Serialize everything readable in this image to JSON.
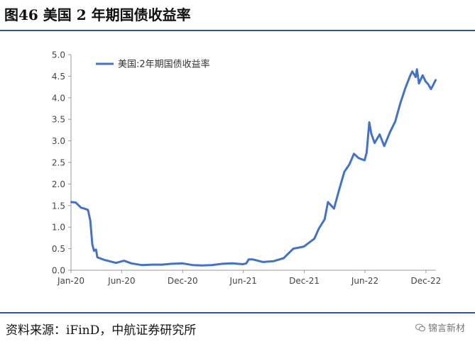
{
  "figure": {
    "title": "图46  美国 2 年期国债收益率",
    "source": "资料来源：iFinD，中航证券研究所",
    "watermark": "锦言新材",
    "watermark_icon": "wechat-icon"
  },
  "chart_data": {
    "type": "line",
    "title": "",
    "xlabel": "",
    "ylabel": "",
    "ylim": [
      0,
      5
    ],
    "yticks": [
      "0.0",
      "0.5",
      "1.0",
      "1.5",
      "2.0",
      "2.5",
      "3.0",
      "3.5",
      "4.0",
      "4.5",
      "5.0"
    ],
    "xticks": [
      {
        "label": "Jan-20",
        "x": "2020-01-01"
      },
      {
        "label": "Jun-20",
        "x": "2020-06-01"
      },
      {
        "label": "Dec-20",
        "x": "2020-12-01"
      },
      {
        "label": "Jun-21",
        "x": "2021-06-01"
      },
      {
        "label": "Dec-21",
        "x": "2021-12-01"
      },
      {
        "label": "Jun-22",
        "x": "2022-06-01"
      },
      {
        "label": "Dec-22",
        "x": "2022-12-01"
      }
    ],
    "xlim": [
      "2020-01-01",
      "2022-12-31"
    ],
    "grid": false,
    "legend_position": "top-left",
    "color": "#4472c4",
    "series": [
      {
        "name": "美国:2年期国债收益率",
        "x": [
          "2020-01-02",
          "2020-01-15",
          "2020-01-31",
          "2020-02-10",
          "2020-02-21",
          "2020-02-28",
          "2020-03-05",
          "2020-03-10",
          "2020-03-16",
          "2020-03-20",
          "2020-03-27",
          "2020-04-10",
          "2020-04-30",
          "2020-05-15",
          "2020-06-08",
          "2020-06-30",
          "2020-07-31",
          "2020-08-31",
          "2020-09-30",
          "2020-10-30",
          "2020-11-30",
          "2020-12-31",
          "2021-01-29",
          "2021-02-26",
          "2021-03-31",
          "2021-04-30",
          "2021-05-14",
          "2021-05-31",
          "2021-06-10",
          "2021-06-17",
          "2021-06-30",
          "2021-07-30",
          "2021-08-31",
          "2021-09-30",
          "2021-10-29",
          "2021-11-30",
          "2021-12-31",
          "2022-01-14",
          "2022-01-31",
          "2022-02-10",
          "2022-02-28",
          "2022-03-15",
          "2022-03-31",
          "2022-04-15",
          "2022-04-29",
          "2022-05-13",
          "2022-05-31",
          "2022-06-06",
          "2022-06-14",
          "2022-06-20",
          "2022-06-30",
          "2022-07-15",
          "2022-07-29",
          "2022-08-15",
          "2022-08-31",
          "2022-09-15",
          "2022-09-30",
          "2022-10-14",
          "2022-10-21",
          "2022-10-31",
          "2022-11-04",
          "2022-11-10",
          "2022-11-21",
          "2022-11-30",
          "2022-12-08",
          "2022-12-16",
          "2022-12-23",
          "2022-12-30"
        ],
        "y": [
          1.58,
          1.57,
          1.45,
          1.43,
          1.4,
          1.15,
          0.6,
          0.45,
          0.48,
          0.3,
          0.28,
          0.24,
          0.2,
          0.17,
          0.22,
          0.16,
          0.12,
          0.13,
          0.13,
          0.15,
          0.16,
          0.12,
          0.11,
          0.12,
          0.15,
          0.16,
          0.15,
          0.14,
          0.16,
          0.25,
          0.25,
          0.19,
          0.21,
          0.28,
          0.5,
          0.55,
          0.73,
          0.97,
          1.18,
          1.58,
          1.43,
          1.85,
          2.28,
          2.45,
          2.7,
          2.6,
          2.55,
          2.73,
          3.43,
          3.17,
          2.95,
          3.15,
          2.88,
          3.2,
          3.45,
          3.87,
          4.22,
          4.5,
          4.61,
          4.48,
          4.66,
          4.33,
          4.52,
          4.38,
          4.31,
          4.2,
          4.3,
          4.41
        ]
      }
    ]
  }
}
